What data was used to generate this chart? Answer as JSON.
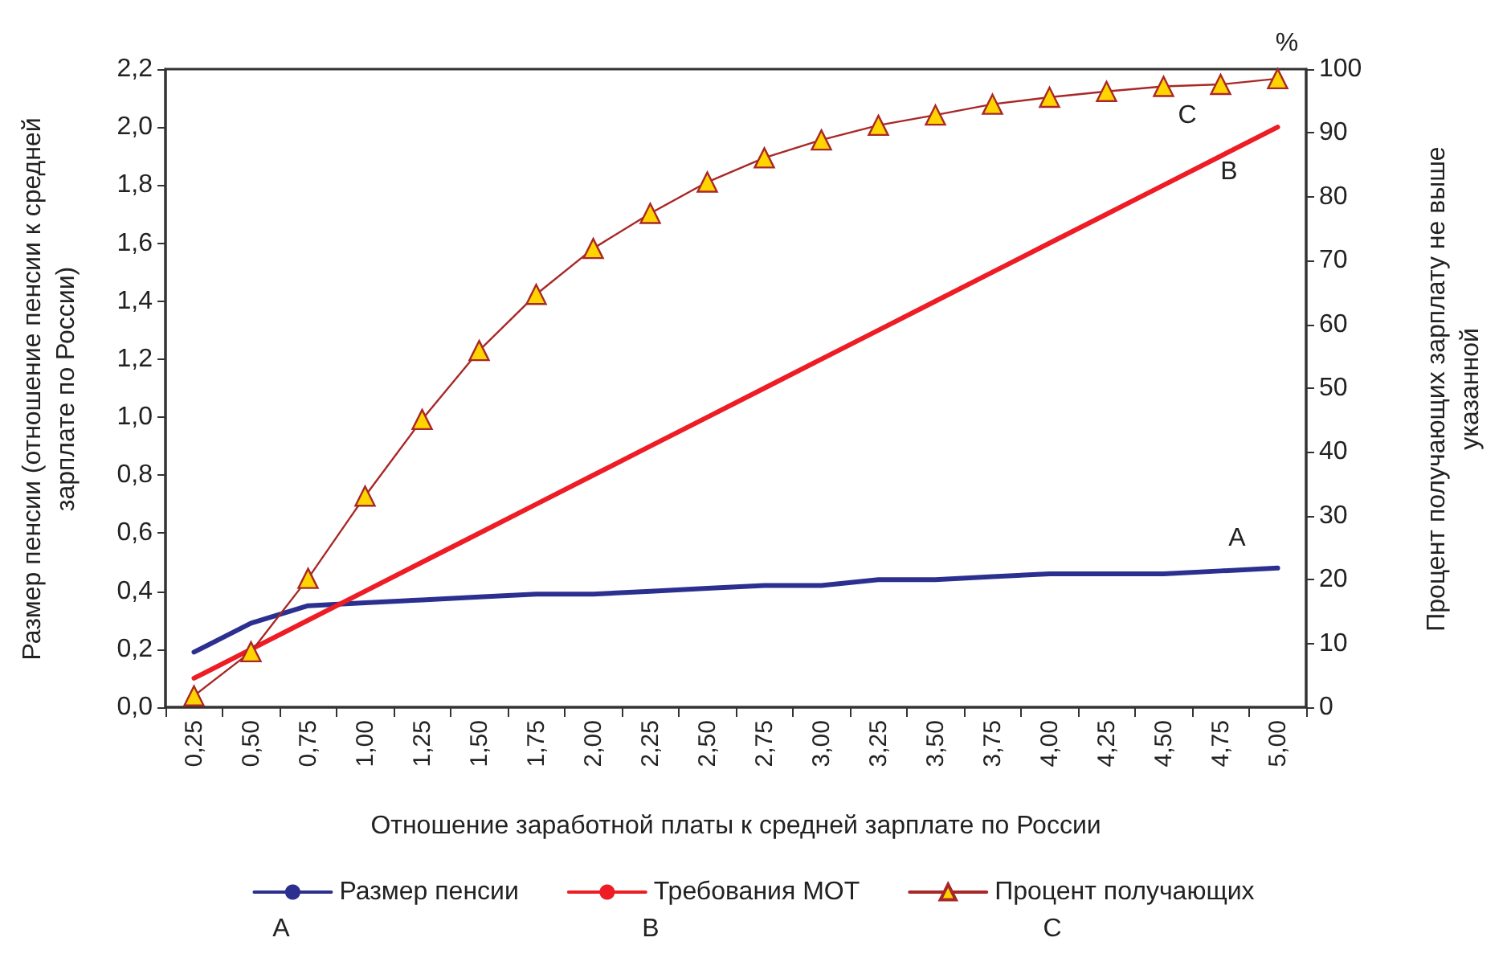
{
  "chart_data": {
    "type": "line",
    "xlabel": "Отношение заработной платы к средней зарплате по России",
    "ylabel": "Размер пенсии (отношение пенсии к средней зарплате по России)",
    "y2label": "Процент получающих зарплату не выше указанной",
    "categories": [
      "0,25",
      "0,50",
      "0,75",
      "1,00",
      "1,25",
      "1,50",
      "1,75",
      "2,00",
      "2,25",
      "2,50",
      "2,75",
      "3,00",
      "3,25",
      "3,50",
      "3,75",
      "4,00",
      "4,25",
      "4,50",
      "4,75",
      "5,00"
    ],
    "series": [
      {
        "name": "Размер пенсии",
        "color": "#2b2f8f",
        "marker": "none",
        "values": [
          0.19,
          0.29,
          0.35,
          0.36,
          0.37,
          0.38,
          0.39,
          0.39,
          0.4,
          0.41,
          0.42,
          0.42,
          0.44,
          0.44,
          0.45,
          0.46,
          0.46,
          0.46,
          0.47,
          0.48
        ]
      },
      {
        "name": "Требования МОТ",
        "color": "#ee1c25",
        "marker": "none",
        "values": [
          0.1,
          0.2,
          0.3,
          0.4,
          0.5,
          0.6,
          0.7,
          0.8,
          0.9,
          1.0,
          1.1,
          1.2,
          1.3,
          1.4,
          1.5,
          1.6,
          1.7,
          1.8,
          1.9,
          2.0
        ]
      },
      {
        "name": "Процент получающих",
        "color": "#a82828",
        "marker": "triangle",
        "axis": "y2",
        "values": [
          1.8,
          8.7,
          20.2,
          33.1,
          45.1,
          55.9,
          64.7,
          71.9,
          77.4,
          82.3,
          86.1,
          88.9,
          91.2,
          92.8,
          94.5,
          95.6,
          96.5,
          97.3,
          97.6,
          98.5
        ]
      }
    ],
    "ylim": [
      0,
      2.2
    ],
    "yticks": [
      {
        "value": 0,
        "label": "0,0"
      },
      {
        "value": 0.2,
        "label": "0,2"
      },
      {
        "value": 0.4,
        "label": "0,4"
      },
      {
        "value": 0.6,
        "label": "0,6"
      },
      {
        "value": 0.8,
        "label": "0,8"
      },
      {
        "value": 1,
        "label": "1,0"
      },
      {
        "value": 1.2,
        "label": "1,2"
      },
      {
        "value": 1.4,
        "label": "1,4"
      },
      {
        "value": 1.6,
        "label": "1,6"
      },
      {
        "value": 1.8,
        "label": "1,8"
      },
      {
        "value": 2,
        "label": "2,0"
      },
      {
        "value": 2.2,
        "label": "2,2"
      }
    ],
    "y2lim": [
      0,
      100
    ],
    "y2ticks": [
      0,
      10,
      20,
      30,
      40,
      50,
      60,
      70,
      80,
      90,
      100
    ],
    "annotations": [
      "A",
      "B",
      "C",
      "%",
      "A",
      "B",
      "C"
    ],
    "grid": false,
    "legend": "bottom"
  }
}
